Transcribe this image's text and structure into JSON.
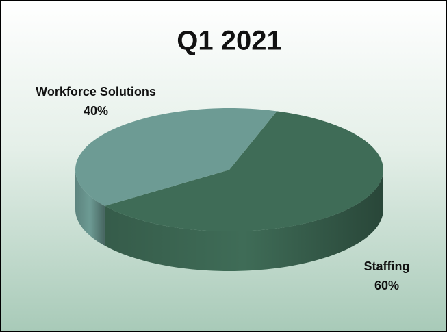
{
  "chart_data": {
    "type": "pie",
    "title": "Q1 2021",
    "categories": [
      "Staffing",
      "Workforce Solutions"
    ],
    "values": [
      60,
      40
    ],
    "value_labels": [
      "60%",
      "40%"
    ],
    "colors": [
      "#3f6c57",
      "#6d9b94"
    ],
    "three_d": true
  }
}
